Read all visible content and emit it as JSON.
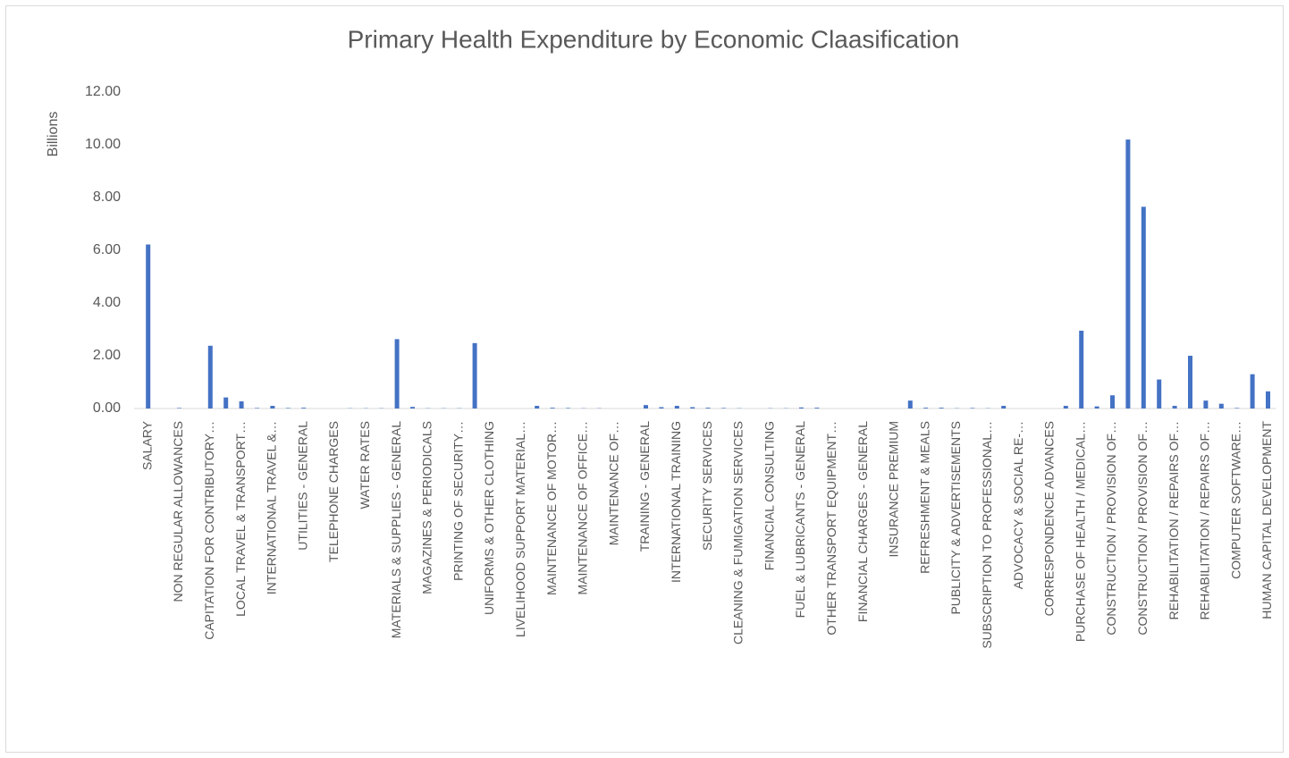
{
  "chart_data": {
    "type": "bar",
    "title": "Primary Health Expenditure by Economic Claasification",
    "y_label": "Billions",
    "categories": [
      "SALARY",
      null,
      "NON REGULAR ALLOWANCES",
      null,
      "CAPITATION FOR CONTRIBUTORY…",
      null,
      "LOCAL TRAVEL & TRANSPORT…",
      null,
      "INTERNATIONAL TRAVEL &…",
      null,
      "UTILITIES - GENERAL",
      null,
      "TELEPHONE CHARGES",
      null,
      "WATER RATES",
      null,
      "MATERIALS & SUPPLIES - GENERAL",
      null,
      "MAGAZINES & PERIODICALS",
      null,
      "PRINTING OF SECURITY…",
      null,
      "UNIFORMS & OTHER CLOTHING",
      null,
      "LIVELIHOOD SUPPORT MATERIAL…",
      null,
      "MAINTENANCE OF MOTOR…",
      null,
      "MAINTENANCE OF OFFICE…",
      null,
      "MAINTENANCE OF…",
      null,
      "TRAINING - GENERAL",
      null,
      "INTERNATIONAL  TRAINING",
      null,
      "SECURITY SERVICES",
      null,
      "CLEANING & FUMIGATION SERVICES",
      null,
      "FINANCIAL CONSULTING",
      null,
      "FUEL & LUBRICANTS - GENERAL",
      null,
      "OTHER TRANSPORT EQUIPMENT…",
      null,
      "FINANCIAL CHARGES - GENERAL",
      null,
      "INSURANCE PREMIUM",
      null,
      "REFRESHMENT & MEALS",
      null,
      "PUBLICITY & ADVERTISEMENTS",
      null,
      "SUBSCRIPTION TO PROFESSIONAL…",
      null,
      "ADVOCACY & SOCIAL RE-…",
      null,
      "CORRESPONDENCE ADVANCES",
      null,
      "PURCHASE OF HEALTH / MEDICAL…",
      null,
      "CONSTRUCTION / PROVISION OF…",
      null,
      "CONSTRUCTION / PROVISION OF…",
      null,
      "REHABILITATION / REPAIRS OF…",
      null,
      "REHABILITATION / REPAIRS OF…",
      null,
      "COMPUTER SOFTWARE…",
      null,
      "HUMAN CAPITAL DEVELOPMENT"
    ],
    "values": [
      6.22,
      0,
      0.02,
      0,
      2.38,
      0.42,
      0.27,
      0.02,
      0.1,
      0.02,
      0.03,
      0,
      0,
      0.01,
      0.01,
      0.01,
      2.63,
      0.06,
      0.01,
      0.01,
      0.01,
      2.48,
      0,
      0,
      0,
      0.1,
      0.03,
      0.02,
      0.01,
      0.01,
      0,
      0,
      0.13,
      0.05,
      0.1,
      0.05,
      0.03,
      0.02,
      0.01,
      0,
      0.01,
      0.01,
      0.04,
      0.03,
      0,
      0,
      0,
      0,
      0,
      0.3,
      0.03,
      0.03,
      0.01,
      0.02,
      0.01,
      0.1,
      0,
      0,
      0,
      0.1,
      2.95,
      0.08,
      0.5,
      10.2,
      7.65,
      1.1,
      0.1,
      2.0,
      0.3,
      0.18,
      0.02,
      1.3,
      0.65
    ],
    "color": "#4472c4",
    "ylim": [
      0,
      12
    ],
    "yticks": [
      {
        "value": 0,
        "label": "0.00"
      },
      {
        "value": 2,
        "label": "2.00"
      },
      {
        "value": 4,
        "label": "4.00"
      },
      {
        "value": 6,
        "label": "6.00"
      },
      {
        "value": 8,
        "label": "8.00"
      },
      {
        "value": 10,
        "label": "10.00"
      },
      {
        "value": 12,
        "label": "12.00"
      }
    ],
    "grid": false
  }
}
